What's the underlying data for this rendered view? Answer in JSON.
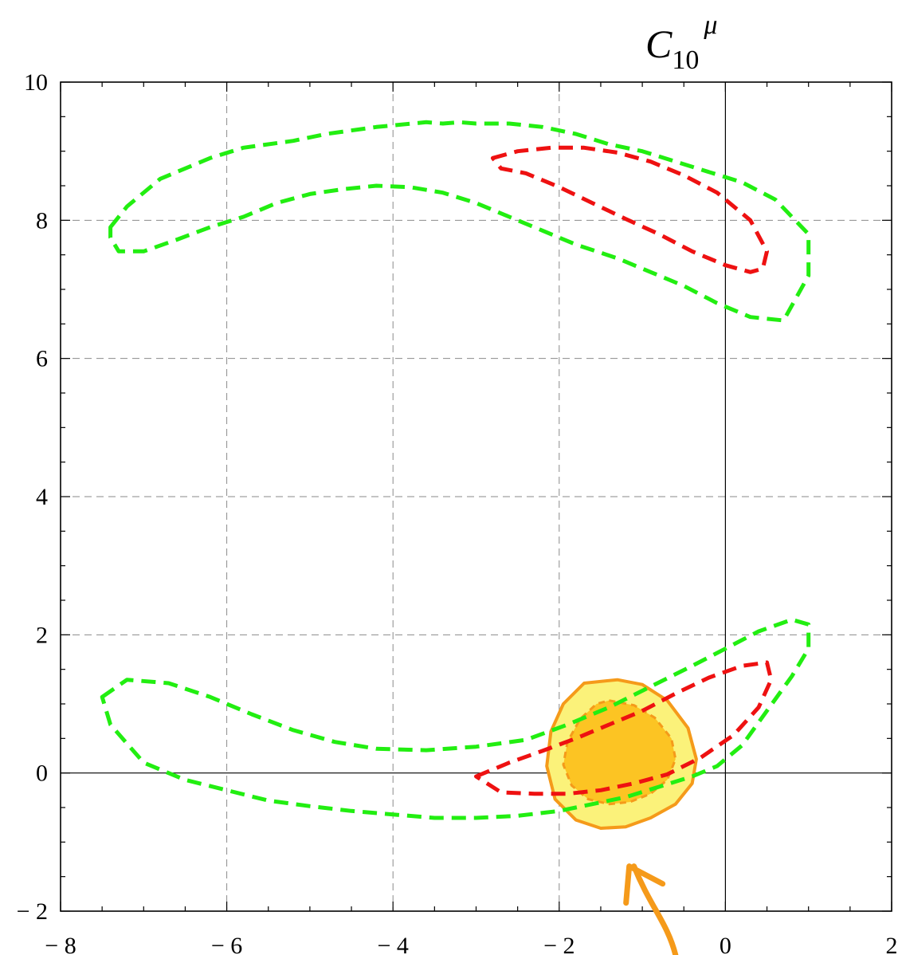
{
  "chart_data": {
    "type": "contour",
    "title": {
      "base": "C",
      "subscript": "10",
      "superscript": "μ"
    },
    "xlim": [
      -8,
      2
    ],
    "ylim": [
      -2,
      10
    ],
    "x_ticks": [
      -8,
      -6,
      -4,
      -2,
      0,
      2
    ],
    "y_ticks": [
      -2,
      0,
      2,
      4,
      6,
      8,
      10
    ],
    "x_tick_labels": [
      "− 8",
      "− 6",
      "− 4",
      "− 2",
      "0",
      "2"
    ],
    "y_tick_labels": [
      "− 2",
      "0",
      "2",
      "4",
      "6",
      "8",
      "10"
    ],
    "grid": true,
    "colors": {
      "green": "#22ee11",
      "red": "#ee1111",
      "orange": "#f59a1a",
      "yellow_fill": "#fbf27a",
      "orange_fill": "#fcc423"
    },
    "series": [
      {
        "style": "green-dashed",
        "x": [
          -7.4,
          -7.2,
          -6.8,
          -6.2,
          -5.8,
          -5.2,
          -4.8,
          -4.2,
          -3.6,
          -3.4,
          -3.2,
          -3.0,
          -2.6,
          -2.2,
          -1.8,
          -1.4,
          -1.0,
          -0.6,
          -0.2,
          0.2,
          0.6,
          1.0,
          1.0,
          0.7,
          0.3,
          -0.1,
          -0.5,
          -0.9,
          -1.3,
          -1.8,
          -2.2,
          -2.6,
          -3.0,
          -3.4,
          -3.8,
          -4.2,
          -4.6,
          -5.0,
          -5.4,
          -5.8,
          -6.2,
          -6.6,
          -7.0,
          -7.3,
          -7.4
        ],
        "y": [
          7.9,
          8.2,
          8.6,
          8.9,
          9.05,
          9.15,
          9.25,
          9.35,
          9.42,
          9.4,
          9.42,
          9.4,
          9.4,
          9.35,
          9.25,
          9.1,
          9.0,
          8.85,
          8.7,
          8.55,
          8.3,
          7.8,
          7.2,
          6.55,
          6.6,
          6.8,
          7.05,
          7.25,
          7.45,
          7.65,
          7.85,
          8.05,
          8.25,
          8.4,
          8.48,
          8.5,
          8.45,
          8.38,
          8.25,
          8.05,
          7.9,
          7.72,
          7.55,
          7.55,
          7.75
        ]
      },
      {
        "style": "red-dashed",
        "x": [
          -2.8,
          -2.5,
          -2.1,
          -1.7,
          -1.3,
          -0.9,
          -0.5,
          -0.1,
          0.3,
          0.5,
          0.45,
          0.3,
          0.0,
          -0.4,
          -0.8,
          -1.2,
          -1.6,
          -2.0,
          -2.4,
          -2.7,
          -2.8
        ],
        "y": [
          8.9,
          9.0,
          9.05,
          9.05,
          8.98,
          8.85,
          8.65,
          8.4,
          8.0,
          7.55,
          7.3,
          7.25,
          7.35,
          7.55,
          7.8,
          8.02,
          8.25,
          8.48,
          8.68,
          8.75,
          8.9
        ]
      },
      {
        "style": "green-dashed",
        "x": [
          -7.5,
          -7.2,
          -6.7,
          -6.2,
          -5.7,
          -5.2,
          -4.7,
          -4.2,
          -3.6,
          -3.0,
          -2.4,
          -1.9,
          -1.4,
          -0.9,
          -0.4,
          0.0,
          0.4,
          0.8,
          1.0,
          1.0,
          0.8,
          0.5,
          0.2,
          -0.1,
          -0.4,
          -0.8,
          -1.2,
          -1.6,
          -2.0,
          -2.5,
          -3.0,
          -3.5,
          -4.0,
          -4.5,
          -5.0,
          -5.5,
          -6.0,
          -6.5,
          -7.0,
          -7.4,
          -7.5
        ],
        "y": [
          1.1,
          1.35,
          1.3,
          1.1,
          0.85,
          0.62,
          0.45,
          0.35,
          0.33,
          0.38,
          0.48,
          0.7,
          0.95,
          1.25,
          1.55,
          1.8,
          2.05,
          2.22,
          2.15,
          1.8,
          1.4,
          0.9,
          0.4,
          0.1,
          -0.05,
          -0.2,
          -0.35,
          -0.45,
          -0.55,
          -0.62,
          -0.65,
          -0.65,
          -0.6,
          -0.55,
          -0.48,
          -0.4,
          -0.25,
          -0.1,
          0.15,
          0.7,
          1.1
        ]
      },
      {
        "style": "red-dashed",
        "x": [
          -3.0,
          -2.6,
          -2.2,
          -1.8,
          -1.4,
          -1.0,
          -0.6,
          -0.2,
          0.2,
          0.5,
          0.55,
          0.4,
          0.1,
          -0.3,
          -0.7,
          -1.1,
          -1.5,
          -1.9,
          -2.3,
          -2.7,
          -3.0
        ],
        "y": [
          -0.05,
          0.15,
          0.32,
          0.5,
          0.7,
          0.9,
          1.15,
          1.38,
          1.55,
          1.6,
          1.35,
          0.95,
          0.55,
          0.22,
          -0.02,
          -0.15,
          -0.25,
          -0.3,
          -0.3,
          -0.28,
          -0.05
        ]
      }
    ],
    "filled_regions": [
      {
        "style": "yellow-fill-orange-outline",
        "x": [
          -1.3,
          -1.0,
          -0.7,
          -0.45,
          -0.35,
          -0.4,
          -0.6,
          -0.9,
          -1.2,
          -1.5,
          -1.8,
          -2.05,
          -2.15,
          -2.1,
          -1.95,
          -1.7,
          -1.3
        ],
        "y": [
          1.35,
          1.28,
          1.05,
          0.65,
          0.2,
          -0.15,
          -0.45,
          -0.65,
          -0.78,
          -0.8,
          -0.68,
          -0.38,
          0.1,
          0.6,
          1.0,
          1.3,
          1.35
        ]
      },
      {
        "style": "orange-fill-orange-dashed",
        "x": [
          -1.4,
          -1.1,
          -0.85,
          -0.65,
          -0.6,
          -0.7,
          -0.9,
          -1.15,
          -1.4,
          -1.65,
          -1.85,
          -1.95,
          -1.9,
          -1.75,
          -1.55,
          -1.4
        ],
        "y": [
          1.05,
          0.98,
          0.8,
          0.5,
          0.2,
          -0.1,
          -0.3,
          -0.42,
          -0.45,
          -0.38,
          -0.18,
          0.12,
          0.45,
          0.78,
          1.0,
          1.05
        ]
      }
    ],
    "arrow": {
      "color": "#f59a1a",
      "from": [
        -0.6,
        -3.6
      ],
      "to": [
        -1.1,
        -1.35
      ]
    }
  }
}
